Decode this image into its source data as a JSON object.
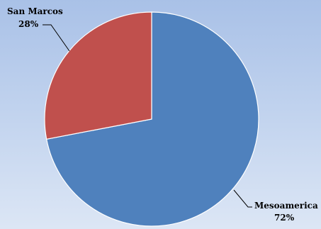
{
  "chart_data": {
    "type": "pie",
    "title": "",
    "slices": [
      {
        "label": "Mesoamerica",
        "value": 72,
        "value_label": "72%",
        "color": "#4f81bd"
      },
      {
        "label": "San Marcos",
        "value": 28,
        "value_label": "28%",
        "color": "#c0504d"
      }
    ],
    "legend": "none"
  },
  "colors": {
    "background_top": "#a9c1e7",
    "background_bottom": "#dce6f5",
    "slice_edge": "#ffffff",
    "leader_line": "#000000"
  }
}
